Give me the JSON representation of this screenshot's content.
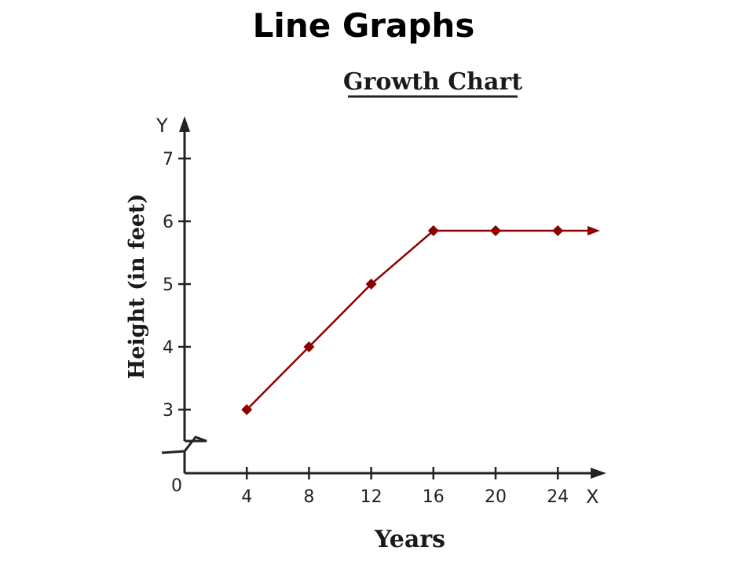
{
  "slide": {
    "title": "Line Graphs"
  },
  "chart_data": {
    "type": "line",
    "title": "Growth Chart",
    "xlabel": "Years",
    "ylabel": "Height (in feet)",
    "x_axis_letter": "X",
    "y_axis_letter": "Y",
    "origin_label": "0",
    "x_ticks": [
      4,
      8,
      12,
      16,
      20,
      24
    ],
    "y_ticks": [
      3,
      4,
      5,
      6,
      7
    ],
    "xlim": [
      0,
      24
    ],
    "ylim": [
      2.5,
      7
    ],
    "y_axis_break": true,
    "grid": false,
    "legend": "none",
    "line_color": "#8b0000",
    "series": [
      {
        "x": [
          4,
          8,
          12,
          16,
          20,
          24
        ],
        "y": [
          3,
          4,
          5,
          5.85,
          5.85,
          5.85
        ]
      }
    ]
  }
}
